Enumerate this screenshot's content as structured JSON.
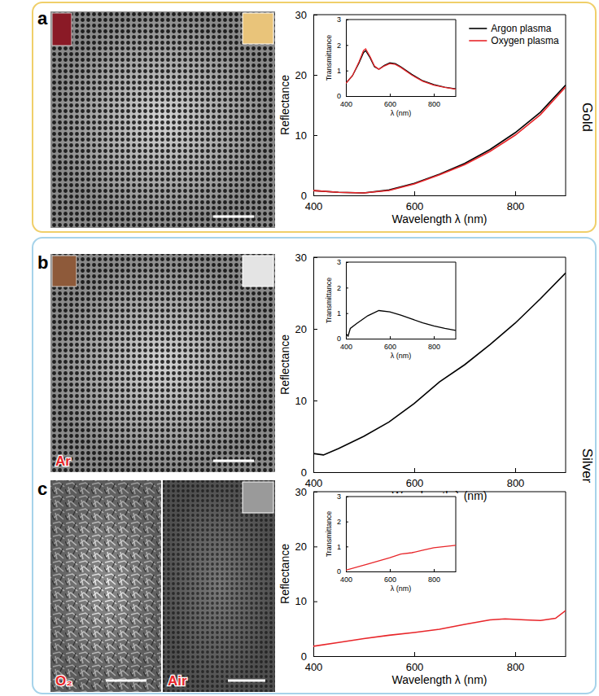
{
  "panel_letters": [
    "a",
    "b",
    "c"
  ],
  "materials": [
    "Gold",
    "Silver"
  ],
  "image_labels": [
    "Ar",
    "O₂",
    "Air"
  ],
  "chart_data": [
    {
      "type": "line",
      "x_label": "Wavelength λ (nm)",
      "y_label": "Reflectance",
      "xlim": [
        400,
        900
      ],
      "xticks": [
        400,
        600,
        800
      ],
      "ylim": [
        0,
        30
      ],
      "yticks": [
        0,
        10,
        20,
        30
      ],
      "legend": "top-right",
      "x": [
        400,
        450,
        500,
        550,
        600,
        650,
        700,
        750,
        800,
        850,
        900
      ],
      "series": [
        {
          "name": "Argon plasma",
          "color": "#000000",
          "values": [
            0.8,
            0.5,
            0.4,
            0.9,
            2.0,
            3.5,
            5.3,
            7.6,
            10.4,
            13.8,
            18.3
          ]
        },
        {
          "name": "Oxygen plasma",
          "color": "#e8262a",
          "values": [
            0.8,
            0.5,
            0.4,
            0.8,
            1.9,
            3.4,
            5.1,
            7.3,
            10.0,
            13.4,
            18.0
          ]
        }
      ]
    },
    {
      "type": "line",
      "x_label": "λ (nm)",
      "y_label": "Transmittance",
      "xlim": [
        400,
        900
      ],
      "xticks": [
        400,
        600,
        800
      ],
      "ylim": [
        0,
        3
      ],
      "yticks": [
        0,
        1,
        2,
        3
      ],
      "x": [
        400,
        430,
        460,
        480,
        490,
        510,
        530,
        550,
        575,
        600,
        625,
        650,
        700,
        750,
        800,
        850,
        900
      ],
      "series": [
        {
          "color": "#000000",
          "values": [
            0.5,
            0.8,
            1.3,
            1.7,
            1.78,
            1.5,
            1.15,
            1.05,
            1.2,
            1.3,
            1.27,
            1.15,
            0.85,
            0.6,
            0.45,
            0.35,
            0.28
          ]
        },
        {
          "color": "#e8262a",
          "values": [
            0.5,
            0.8,
            1.35,
            1.78,
            1.85,
            1.55,
            1.18,
            1.05,
            1.18,
            1.27,
            1.24,
            1.12,
            0.82,
            0.58,
            0.43,
            0.34,
            0.27
          ]
        }
      ]
    },
    {
      "type": "line",
      "x_label": "Wavelength λ (nm)",
      "y_label": "Reflectance",
      "xlim": [
        400,
        900
      ],
      "xticks": [
        400,
        600,
        800
      ],
      "ylim": [
        0,
        30
      ],
      "yticks": [
        0,
        10,
        20,
        30
      ],
      "x": [
        400,
        420,
        450,
        500,
        550,
        600,
        650,
        700,
        750,
        800,
        850,
        900
      ],
      "series": [
        {
          "color": "#000000",
          "values": [
            2.6,
            2.4,
            3.3,
            5.0,
            7.0,
            9.6,
            12.6,
            15.0,
            17.8,
            20.8,
            24.2,
            27.8
          ]
        }
      ]
    },
    {
      "type": "line",
      "x_label": "λ (nm)",
      "y_label": "Transmittance",
      "xlim": [
        400,
        900
      ],
      "xticks": [
        400,
        600,
        800
      ],
      "ylim": [
        0,
        3
      ],
      "yticks": [
        0,
        1,
        2,
        3
      ],
      "x": [
        400,
        410,
        420,
        450,
        500,
        550,
        600,
        650,
        700,
        750,
        800,
        850,
        900
      ],
      "series": [
        {
          "color": "#000000",
          "values": [
            0.2,
            0.1,
            0.4,
            0.6,
            0.9,
            1.1,
            1.05,
            0.92,
            0.77,
            0.62,
            0.5,
            0.4,
            0.32
          ]
        }
      ]
    },
    {
      "type": "line",
      "x_label": "Wavelength λ (nm)",
      "y_label": "Reflectance",
      "xlim": [
        400,
        900
      ],
      "xticks": [
        400,
        600,
        800
      ],
      "ylim": [
        0,
        30
      ],
      "yticks": [
        0,
        10,
        20,
        30
      ],
      "x": [
        400,
        450,
        500,
        550,
        600,
        650,
        700,
        750,
        780,
        820,
        850,
        880,
        900
      ],
      "series": [
        {
          "color": "#e8262a",
          "values": [
            1.8,
            2.5,
            3.2,
            3.8,
            4.3,
            4.9,
            5.8,
            6.6,
            6.8,
            6.6,
            6.5,
            6.9,
            8.3
          ]
        }
      ]
    },
    {
      "type": "line",
      "x_label": "λ (nm)",
      "y_label": "Transmittance",
      "xlim": [
        400,
        900
      ],
      "xticks": [
        400,
        600,
        800
      ],
      "ylim": [
        0,
        3
      ],
      "yticks": [
        0,
        1,
        2,
        3
      ],
      "x": [
        400,
        500,
        600,
        650,
        700,
        750,
        800,
        850,
        900
      ],
      "series": [
        {
          "color": "#e8262a",
          "values": [
            0.05,
            0.3,
            0.55,
            0.7,
            0.75,
            0.85,
            0.95,
            1.0,
            1.05
          ]
        }
      ]
    }
  ]
}
